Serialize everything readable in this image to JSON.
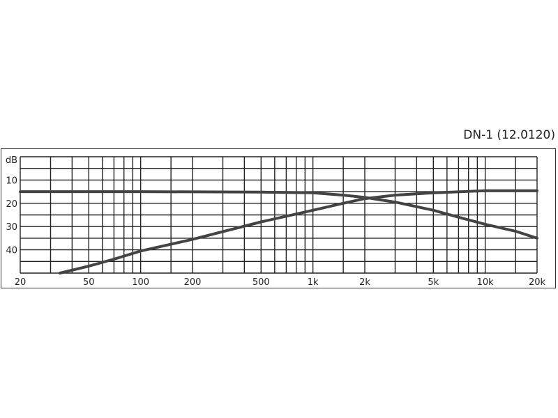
{
  "chart_data": {
    "type": "line",
    "title": "DN-1 (12.0120)",
    "ylabel": "dB",
    "x_scale": "log",
    "y_inverted": true,
    "xlim": [
      20,
      20000
    ],
    "ylim": [
      0,
      50
    ],
    "grid": true,
    "x_ticks": [
      20,
      50,
      100,
      200,
      500,
      1000,
      2000,
      5000,
      10000,
      20000
    ],
    "x_tick_labels": [
      "20",
      "50",
      "100",
      "200",
      "500",
      "1k",
      "2k",
      "5k",
      "10k",
      "20k"
    ],
    "x_grid": [
      20,
      30,
      40,
      50,
      60,
      70,
      80,
      90,
      100,
      150,
      200,
      300,
      400,
      500,
      600,
      700,
      800,
      900,
      1000,
      1500,
      2000,
      3000,
      4000,
      5000,
      6000,
      7000,
      8000,
      9000,
      10000,
      15000,
      20000
    ],
    "y_ticks": [
      10,
      20,
      30,
      40
    ],
    "y_tick_labels": [
      "10",
      "20",
      "30",
      "40"
    ],
    "y_grid": [
      0,
      5,
      10,
      15,
      20,
      25,
      30,
      35,
      40,
      45,
      50
    ],
    "line_color": "#444444",
    "series": [
      {
        "x": [
          20,
          100,
          500,
          1000,
          1500,
          2000,
          3000,
          5000,
          7000,
          10000,
          15000,
          20000
        ],
        "y": [
          15,
          15,
          15.2,
          15.5,
          16.5,
          17.5,
          19.5,
          23,
          26,
          29,
          32,
          35
        ]
      },
      {
        "x": [
          34,
          50,
          70,
          100,
          200,
          500,
          1000,
          1500,
          2000,
          3000,
          5000,
          10000,
          20000
        ],
        "y": [
          50,
          47,
          44,
          40.5,
          35.5,
          28,
          23,
          20,
          18,
          16.5,
          15.5,
          14.6,
          14.6
        ]
      }
    ]
  }
}
